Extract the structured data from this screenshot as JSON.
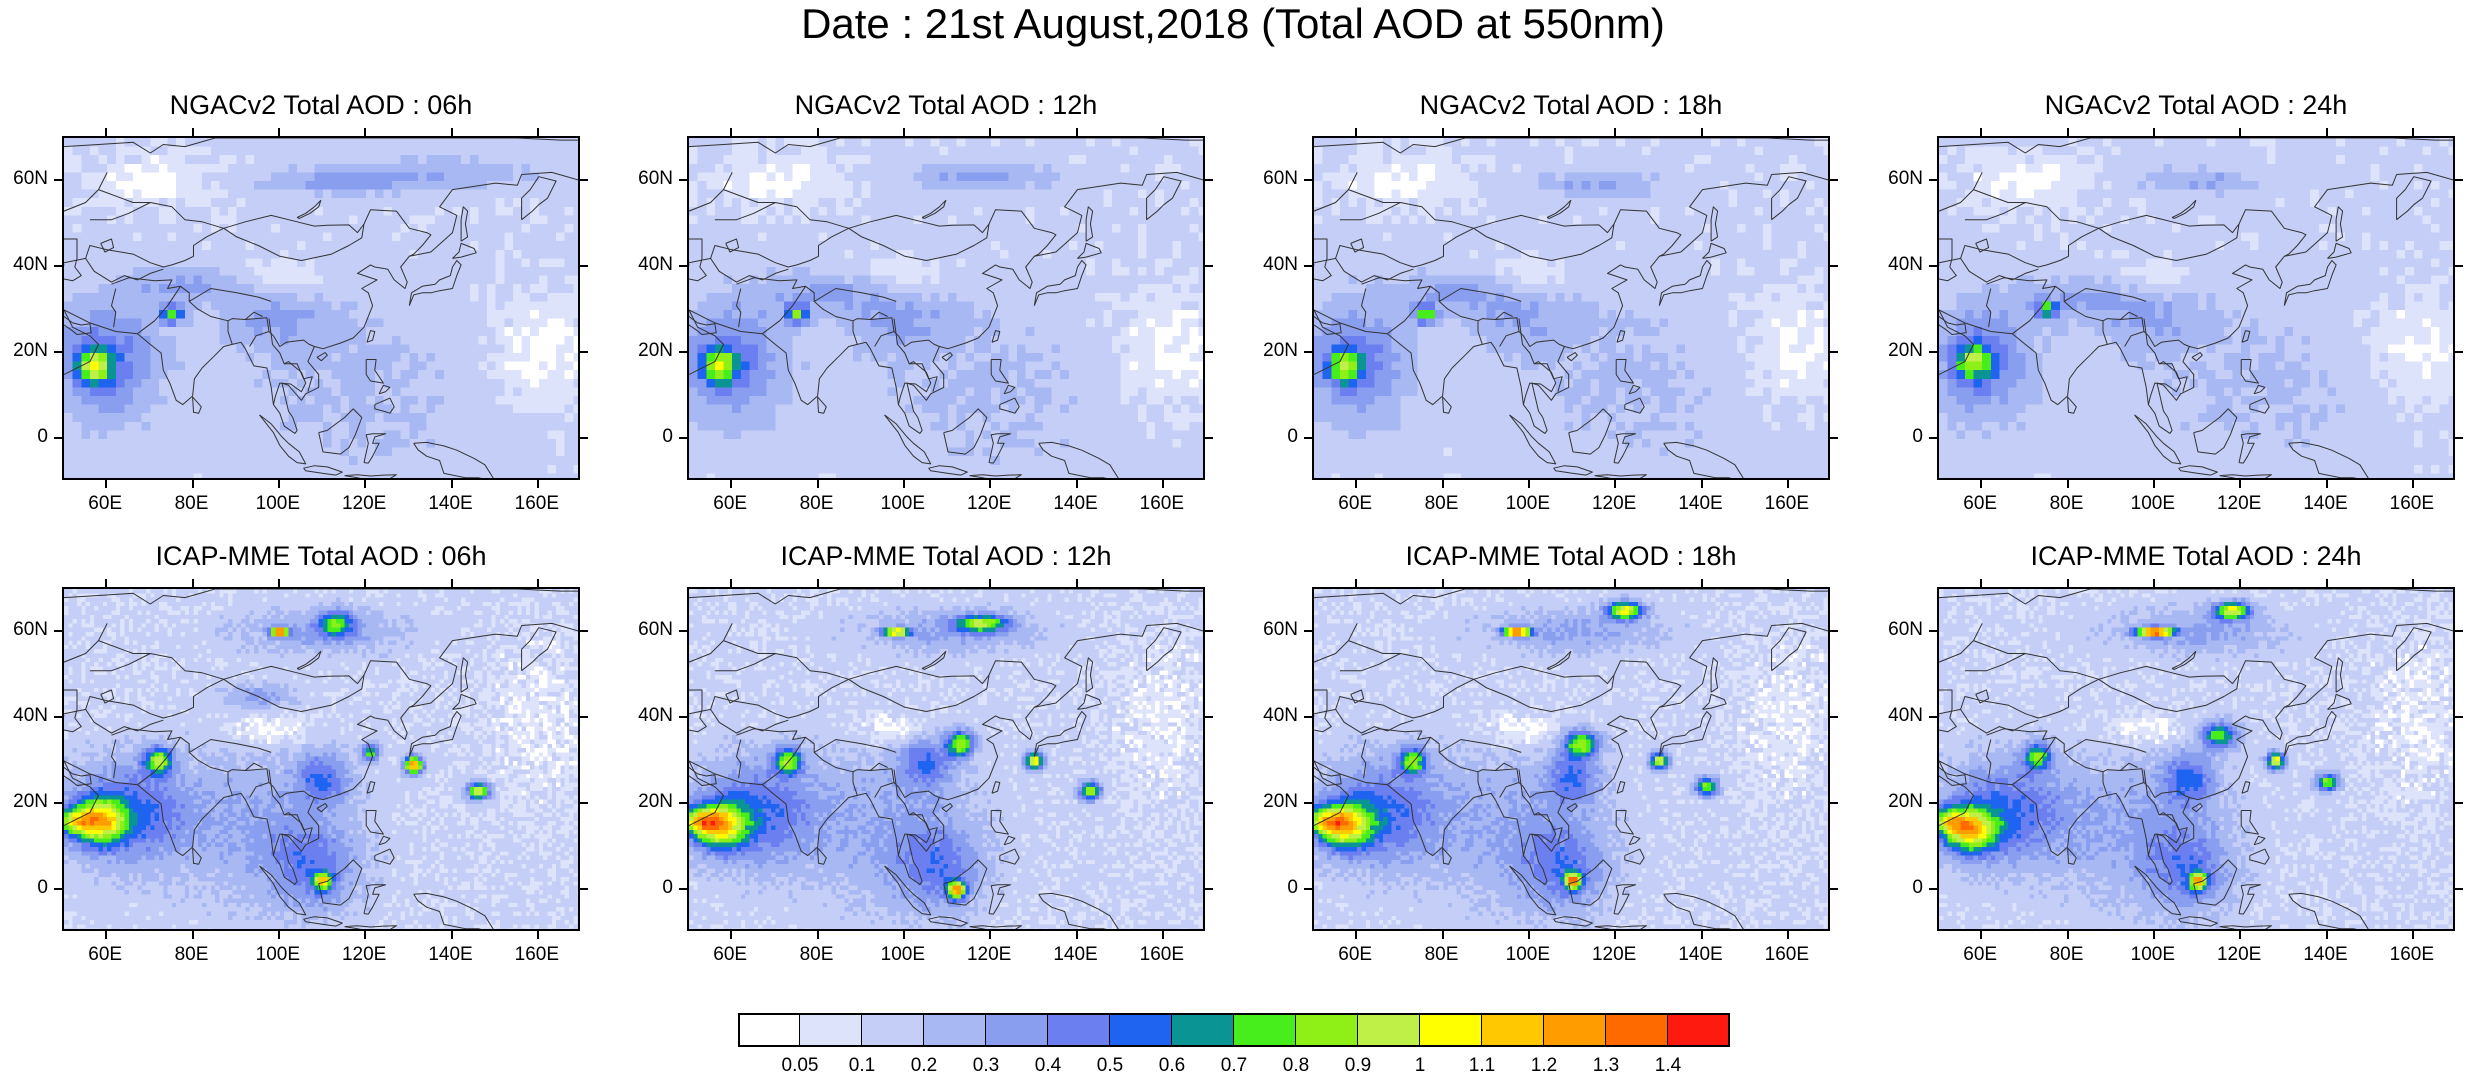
{
  "title": "Date : 21st August,2018 (Total AOD at 550nm)",
  "panels": [
    {
      "title": "NGACv2 Total AOD : 06h",
      "model": "NGACv2",
      "hour": "06h"
    },
    {
      "title": "NGACv2 Total AOD : 12h",
      "model": "NGACv2",
      "hour": "12h"
    },
    {
      "title": "NGACv2 Total AOD : 18h",
      "model": "NGACv2",
      "hour": "18h"
    },
    {
      "title": "NGACv2 Total AOD : 24h",
      "model": "NGACv2",
      "hour": "24h"
    },
    {
      "title": "ICAP-MME Total AOD : 06h",
      "model": "ICAP-MME",
      "hour": "06h"
    },
    {
      "title": "ICAP-MME Total AOD : 12h",
      "model": "ICAP-MME",
      "hour": "12h"
    },
    {
      "title": "ICAP-MME Total AOD : 18h",
      "model": "ICAP-MME",
      "hour": "18h"
    },
    {
      "title": "ICAP-MME Total AOD : 24h",
      "model": "ICAP-MME",
      "hour": "24h"
    }
  ],
  "map": {
    "lon_range": [
      50,
      170
    ],
    "lat_range": [
      -10,
      70
    ],
    "lat_ticks": [
      "60N",
      "40N",
      "20N",
      "0"
    ],
    "lon_ticks": [
      "60E",
      "80E",
      "100E",
      "120E",
      "140E",
      "160E"
    ]
  },
  "colorbar": {
    "labels": [
      "0.05",
      "0.1",
      "0.2",
      "0.3",
      "0.4",
      "0.5",
      "0.6",
      "0.7",
      "0.8",
      "0.9",
      "1",
      "1.1",
      "1.2",
      "1.3",
      "1.4"
    ],
    "colors": [
      "#ffffff",
      "#dde3fb",
      "#c4cef6",
      "#a8b8f3",
      "#8a9ef0",
      "#6c7ff0",
      "#1f64f0",
      "#0a9494",
      "#48ee1c",
      "#8ef016",
      "#bff048",
      "#ffff00",
      "#ffc800",
      "#ff9c00",
      "#ff6a00",
      "#ff1a10"
    ]
  }
}
